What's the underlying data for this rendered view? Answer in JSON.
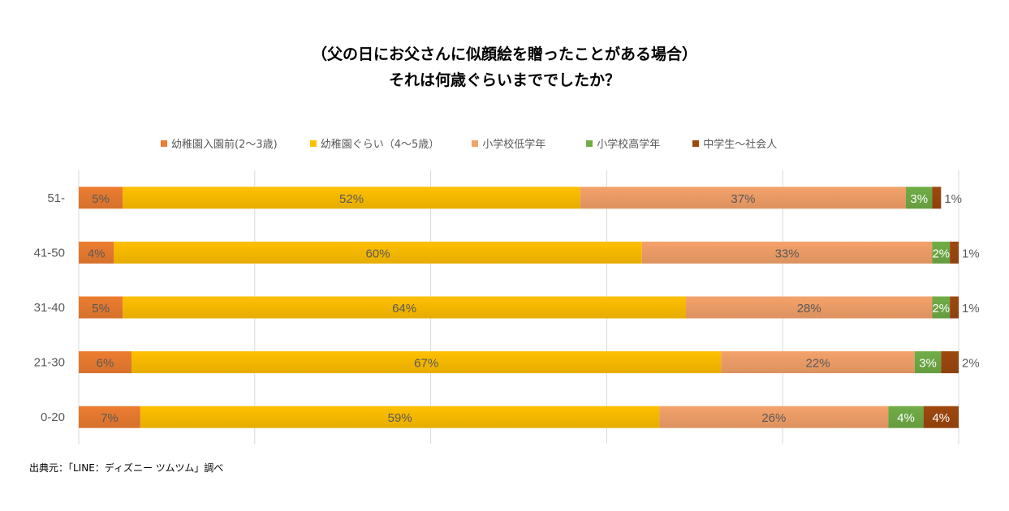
{
  "title_line1": "（父の日にお父さんに似顔絵を贈ったことがある場合）",
  "title_line2": "それは何歳ぐらいまででしたか？",
  "source": "出典元：「LINE：ディズニー ツムツム」調べ",
  "chart_data": {
    "type": "bar",
    "orientation": "horizontal",
    "stacked": true,
    "categories": [
      "51-",
      "41-50",
      "31-40",
      "21-30",
      "0-20"
    ],
    "series": [
      {
        "name": "幼稚園入園前(2～3歳)",
        "color": "#ED7D31",
        "values": [
          5,
          4,
          5,
          6,
          7
        ]
      },
      {
        "name": "幼稚園ぐらい（4～5歳）",
        "color": "#FFC000",
        "values": [
          52,
          60,
          64,
          67,
          59
        ]
      },
      {
        "name": "小学校低学年",
        "color": "#F4A26A",
        "values": [
          37,
          33,
          28,
          22,
          26
        ]
      },
      {
        "name": "小学校高学年",
        "color": "#70AD47",
        "values": [
          3,
          2,
          2,
          3,
          4
        ]
      },
      {
        "name": "中学生～社会人",
        "color": "#9E480E",
        "values": [
          1,
          1,
          1,
          2,
          4
        ]
      }
    ],
    "xlim": [
      0,
      100
    ],
    "grid": true,
    "legend": "top",
    "data_label_suffix": "%"
  }
}
